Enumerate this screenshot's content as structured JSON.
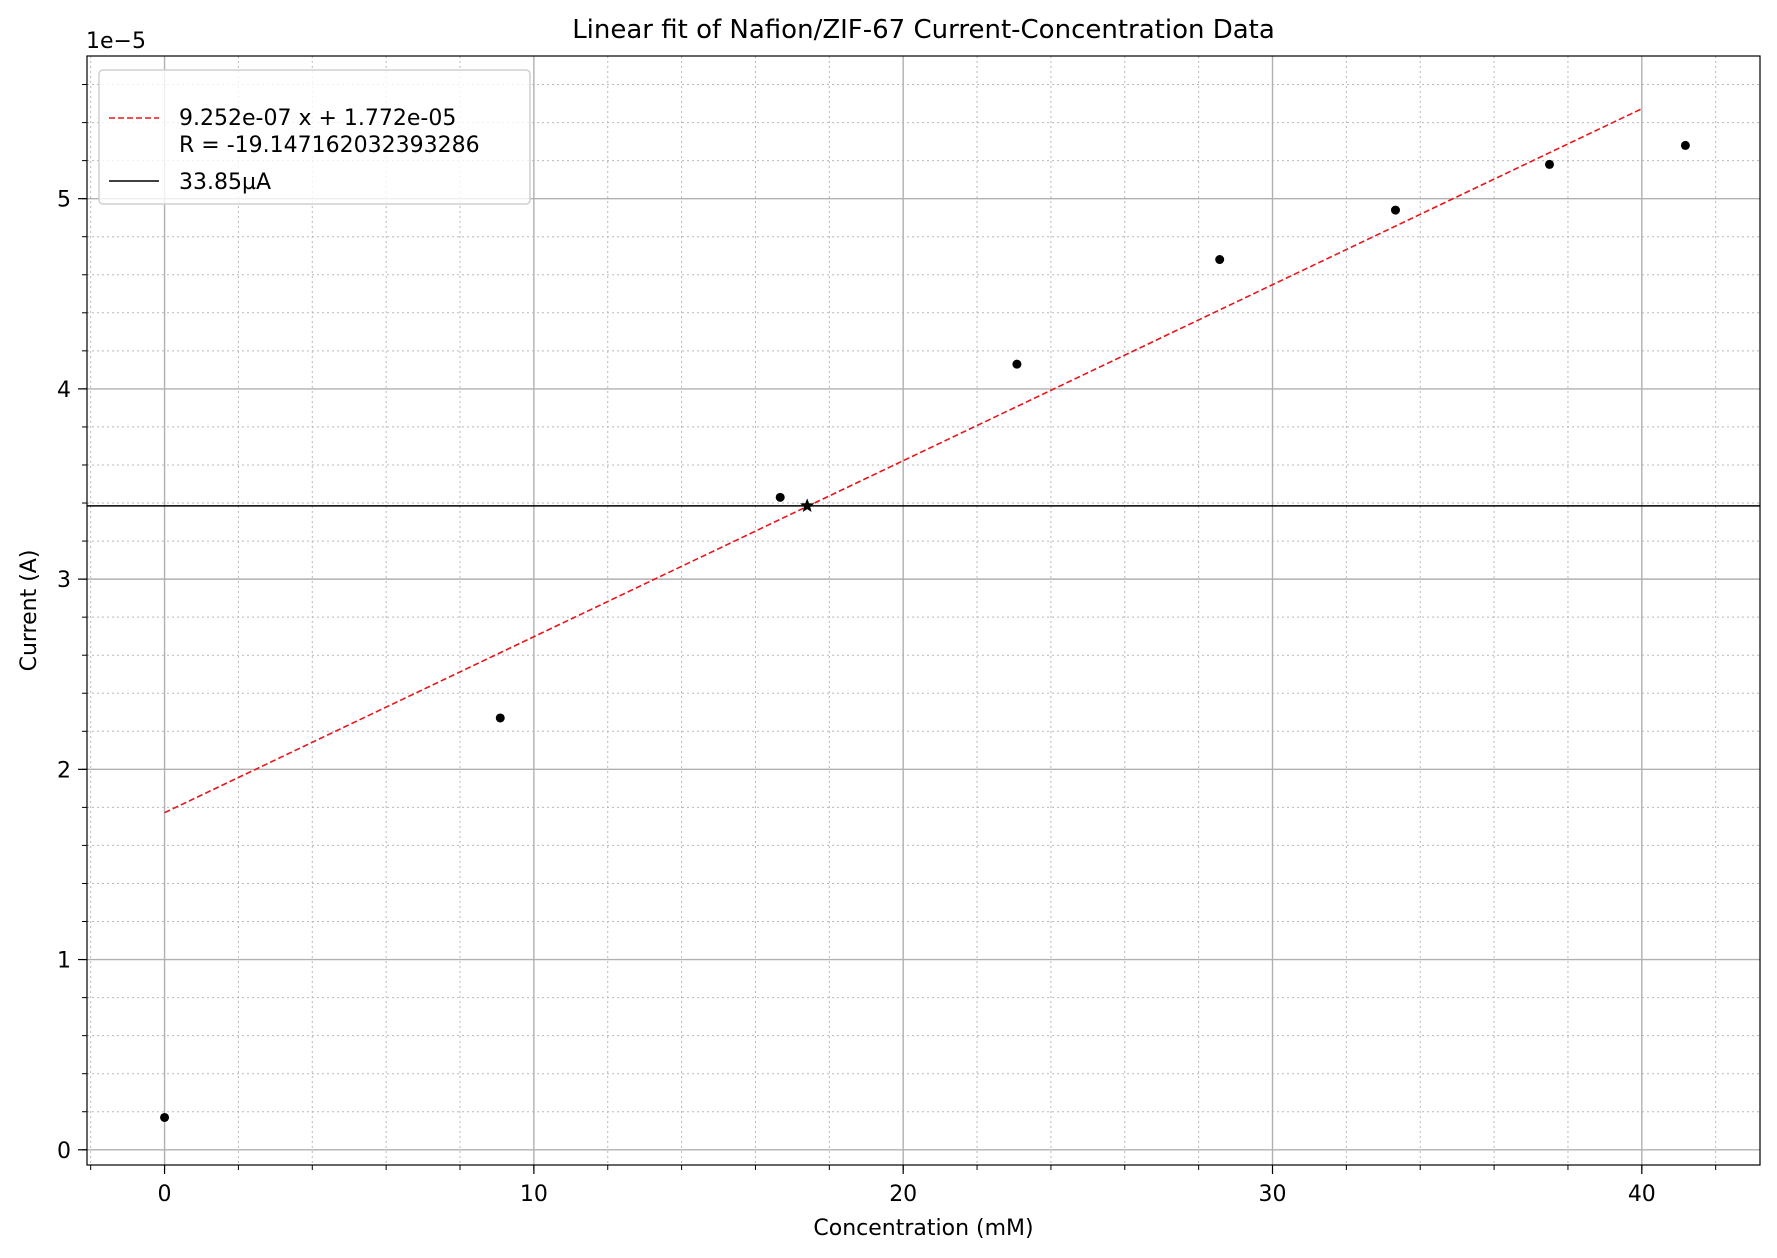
{
  "chart_data": {
    "type": "scatter",
    "title": "Linear fit of Nafion/ZIF-67 Current-Concentration Data",
    "xlabel": "Concentration (mM)",
    "ylabel": "Current (A)",
    "y_offset_label": "1e−5",
    "xlim": [
      -2.1,
      43.2
    ],
    "ylim": [
      -8e-07,
      5.75e-05
    ],
    "x_ticks": [
      0,
      10,
      20,
      30,
      40
    ],
    "x_tick_labels": [
      "0",
      "10",
      "20",
      "30",
      "40"
    ],
    "y_ticks": [
      0,
      1e-05,
      2e-05,
      3e-05,
      4e-05,
      5e-05
    ],
    "y_tick_labels": [
      "0",
      "1",
      "2",
      "3",
      "4",
      "5"
    ],
    "grid": {
      "major": true,
      "minor": true,
      "minor_style": "dotted"
    },
    "legend_position": "top-left",
    "series": [
      {
        "kind": "points",
        "color": "#000000",
        "x": [
          0,
          9.09,
          16.67,
          23.08,
          28.57,
          33.33,
          37.5,
          41.18
        ],
        "y": [
          1.7e-06,
          2.27e-05,
          3.43e-05,
          4.13e-05,
          4.68e-05,
          4.94e-05,
          5.18e-05,
          5.28e-05
        ]
      },
      {
        "kind": "fit-line",
        "name": "9.252e-07 x + 1.772e-05",
        "name_line2": "R = -19.147162032393286",
        "color": "#e8161b",
        "slope": 9.252e-07,
        "intercept": 1.772e-05,
        "x_range": [
          0,
          40
        ]
      },
      {
        "kind": "hline",
        "name": "33.85µA",
        "color": "#000000",
        "y": 3.385e-05
      },
      {
        "kind": "star-marker",
        "color": "#000000",
        "x": 17.4,
        "y": 3.385e-05
      }
    ]
  }
}
